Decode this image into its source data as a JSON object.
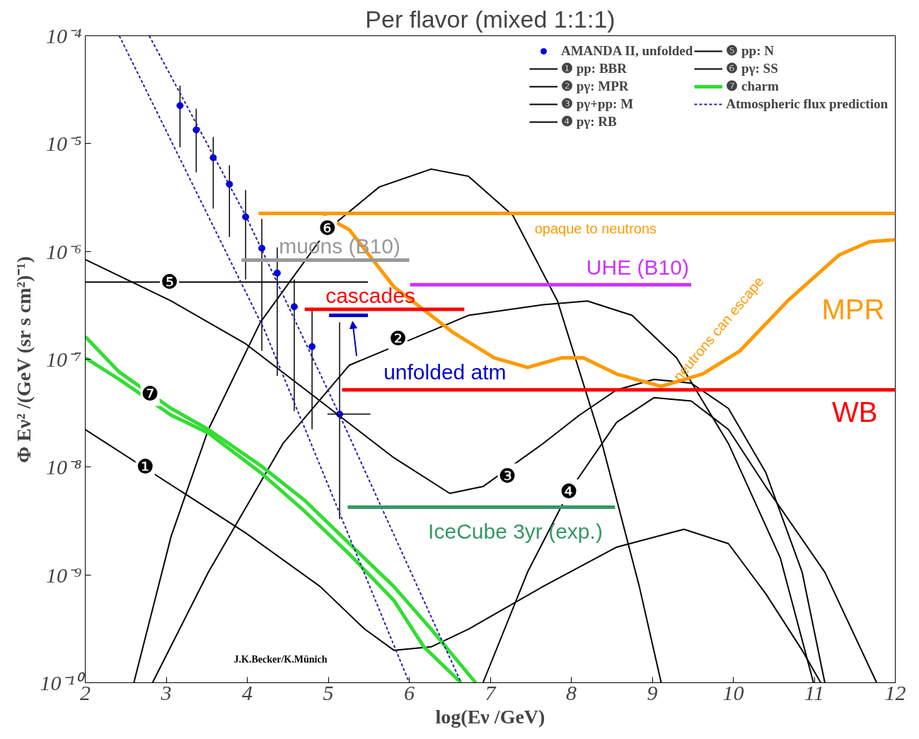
{
  "chart_data": {
    "type": "line",
    "title": "Per flavor (mixed 1:1:1)",
    "xlabel": "log(Eν /GeV)",
    "ylabel": "Φ Eν² /(GeV (sr s cm²)⁻¹)",
    "log": "y",
    "grid": false,
    "legend": "top right",
    "xlim": [
      2,
      12
    ],
    "ylim": [
      1e-10,
      0.0001
    ],
    "xticks": [
      2,
      3,
      4,
      5,
      6,
      7,
      8,
      9,
      10,
      11,
      12
    ],
    "yticks": [
      {
        "value": 1e-10,
        "label": "10⁻¹⁰"
      },
      {
        "value": 1e-09,
        "label": "10⁻⁹"
      },
      {
        "value": 1e-08,
        "label": "10⁻⁸"
      },
      {
        "value": 1e-07,
        "label": "10⁻⁷"
      },
      {
        "value": 1e-06,
        "label": "10⁻⁶"
      },
      {
        "value": 1e-05,
        "label": "10⁻⁵"
      },
      {
        "value": 0.0001,
        "label": "10⁻⁴"
      }
    ],
    "series": [
      {
        "name": "AMANDA II, unfolded",
        "type": "scatter",
        "marker": "circle",
        "color": "#0000dd",
        "x": [
          3.17,
          3.37,
          3.58,
          3.78,
          3.98,
          4.18,
          4.37,
          4.58,
          4.8,
          5.14
        ],
        "values": [
          2.25e-05,
          1.34e-05,
          7.4e-06,
          4.2e-06,
          2.09e-06,
          1.07e-06,
          6.3e-07,
          3.07e-07,
          1.31e-07,
          3.1e-08
        ],
        "errors": [
          [
            9.2e-06,
            3.44e-05
          ],
          [
            5.4e-06,
            2.1e-05
          ],
          [
            2.5e-06,
            1.15e-05
          ],
          [
            1.36e-06,
            6.3e-06
          ],
          [
            5.5e-07,
            3.7e-06
          ],
          [
            1.2e-07,
            2e-06
          ],
          [
            7e-08,
            1.09e-06
          ],
          [
            3.3e-08,
            5.5e-07
          ],
          [
            2.24e-08,
            3e-07
          ],
          [
            3.3e-09,
            2.2e-07
          ]
        ],
        "xerrors": [
          null,
          null,
          null,
          null,
          null,
          null,
          null,
          null,
          null,
          [
            4.99,
            5.52
          ]
        ]
      },
      {
        "name": "❶ pp: BBR",
        "color": "#000000",
        "x": [
          2.0,
          3.98,
          4.9,
          5.45,
          5.81,
          6.27,
          6.73,
          7.65,
          8.56,
          9.39,
          9.94,
          10.4,
          10.85,
          11.08
        ],
        "values": [
          2.23e-08,
          2.45e-09,
          7.8e-10,
          3.14e-10,
          2e-10,
          2.15e-10,
          3.14e-10,
          7.8e-10,
          1.81e-09,
          2.65e-09,
          1.95e-09,
          6.7e-10,
          2e-10,
          1e-10
        ]
      },
      {
        "name": "❷ pγ: MPR",
        "color": "#000000",
        "x": [
          2.83,
          3.52,
          4.44,
          5.26,
          6.73,
          7.65,
          8.2,
          8.75,
          9.3,
          9.94,
          10.58,
          10.99
        ],
        "values": [
          1e-10,
          1.06e-09,
          1.65e-08,
          8.8e-08,
          2.55e-07,
          3.2e-07,
          3.47e-07,
          2.55e-07,
          1.03e-07,
          1.65e-08,
          1.44e-09,
          1e-10
        ]
      },
      {
        "name": "❸ pγ+pp: M",
        "color": "#000000",
        "x": [
          2.0,
          3.06,
          3.98,
          4.9,
          5.81,
          6.5,
          6.91,
          7.65,
          8.1,
          8.56,
          9.02,
          9.48,
          9.94,
          10.4,
          10.85,
          11.13
        ],
        "values": [
          8.4e-07,
          3.47e-07,
          1.39e-07,
          4.1e-08,
          1.22e-08,
          5.7e-09,
          6.6e-09,
          1.65e-08,
          3.03e-08,
          5.2e-08,
          6.5e-08,
          6e-08,
          3.5e-08,
          8.95e-09,
          1.06e-09,
          1e-10
        ]
      },
      {
        "name": "❹ pγ: RB",
        "color": "#000000",
        "x": [
          6.91,
          7.46,
          7.97,
          8.56,
          9.02,
          9.48,
          9.94,
          10.4,
          11.13,
          11.77
        ],
        "values": [
          1e-10,
          1.06e-09,
          5.9e-09,
          2.6e-08,
          4.4e-08,
          4.1e-08,
          2.23e-08,
          6.6e-09,
          1.06e-09,
          1e-10
        ]
      },
      {
        "name": "❺ pp: N",
        "color": "#000000",
        "x": [
          2.0,
          5.49
        ],
        "values": [
          5.2e-07,
          5.2e-07
        ]
      },
      {
        "name": "❻ pγ: SS",
        "color": "#000000",
        "x": [
          2.6,
          3.06,
          3.52,
          4.16,
          4.99,
          5.63,
          6.27,
          6.73,
          7.28,
          7.83,
          8.38,
          8.84,
          9.11
        ],
        "values": [
          1e-10,
          2.28e-09,
          2.23e-08,
          2.19e-07,
          1.59e-06,
          3.96e-06,
          5.8e-06,
          4.98e-06,
          2.15e-06,
          3.47e-07,
          1.65e-08,
          7.8e-10,
          1e-10
        ]
      },
      {
        "name": "❼ charm",
        "color": "#33dd33",
        "x": [
          2.0,
          2.42,
          3.06,
          3.52,
          4.16,
          4.71,
          5.26,
          5.81,
          6.27,
          6.82
        ],
        "values": [
          1.62e-07,
          7.6e-08,
          3.5e-08,
          2.23e-08,
          1.04e-08,
          4.9e-09,
          1.95e-09,
          7.8e-10,
          3.14e-10,
          1e-10
        ]
      },
      {
        "color": "#33dd33",
        "x": [
          2.0,
          2.42,
          3.06,
          3.52,
          4.16,
          4.71,
          5.26,
          5.81,
          6.18,
          6.64
        ],
        "values": [
          1.03e-07,
          6.5e-08,
          3.03e-08,
          2.07e-08,
          8.95e-09,
          3.88e-09,
          1.56e-09,
          5.8e-10,
          2.15e-10,
          1e-10
        ]
      },
      {
        "name": "Atmospheric flux prediction",
        "color": "#2222aa",
        "line_style": "dashed",
        "x": [
          2.42,
          4.21,
          6.0
        ],
        "values": [
          0.0001,
          1.88e-07,
          1e-10
        ]
      },
      {
        "color": "#2222aa",
        "line_style": "dashed",
        "x": [
          2.79,
          3.98,
          5.14,
          6.64
        ],
        "values": [
          0.0001,
          2.15e-06,
          3.03e-08,
          1e-10
        ]
      },
      {
        "name": "opaque to neutrons",
        "color": "#ff9900",
        "x": [
          4.14,
          12.0
        ],
        "values": [
          2.25e-06,
          2.25e-06
        ]
      },
      {
        "name": "MPR",
        "color": "#ff9900",
        "x": [
          4.94,
          5.26,
          5.81,
          6.55,
          7.05,
          7.46,
          7.88,
          8.15,
          8.56,
          9.11,
          9.62,
          10.08,
          10.67,
          11.31,
          11.68,
          12.0
        ],
        "values": [
          2.15e-06,
          1.59e-06,
          4.7e-07,
          1.75e-07,
          1.03e-07,
          8.4e-08,
          1.03e-07,
          1.03e-07,
          7.3e-08,
          5.6e-08,
          7.3e-08,
          1.19e-07,
          3.47e-07,
          9.3e-07,
          1.23e-06,
          1.28e-06
        ]
      },
      {
        "name": "WB",
        "color": "#ff0000",
        "x": [
          5.17,
          12.0
        ],
        "values": [
          5.2e-08,
          5.2e-08
        ]
      },
      {
        "name": "UHE (B10)",
        "color": "#cc33ff",
        "x": [
          6.01,
          9.48
        ],
        "values": [
          4.9e-07,
          4.9e-07
        ]
      },
      {
        "name": "cascades",
        "color": "#ff0000",
        "x": [
          4.71,
          6.68
        ],
        "values": [
          2.9e-07,
          2.9e-07
        ]
      },
      {
        "name": "muons (B10)",
        "color": "#999999",
        "x": [
          3.93,
          6.0
        ],
        "values": [
          8.3e-07,
          8.3e-07
        ]
      },
      {
        "name": "unfolded atm",
        "color": "#0000cc",
        "x": [
          5.01,
          5.49
        ],
        "values": [
          2.55e-07,
          2.55e-07
        ]
      },
      {
        "name": "IceCube 3yr (exp.)",
        "color": "#339966",
        "x": [
          5.24,
          8.54
        ],
        "values": [
          4.25e-09,
          4.25e-09
        ]
      }
    ],
    "annotations": [
      {
        "text": "❶",
        "x": 2.74,
        "y": 1e-08
      },
      {
        "text": "❷",
        "x": 5.86,
        "y": 1.55e-07
      },
      {
        "text": "❸",
        "x": 7.21,
        "y": 8.3e-09
      },
      {
        "text": "❹",
        "x": 7.97,
        "y": 5.9e-09
      },
      {
        "text": "❺",
        "x": 3.04,
        "y": 5.2e-07
      },
      {
        "text": "❻",
        "x": 4.99,
        "y": 1.64e-06
      },
      {
        "text": "❼",
        "x": 2.8,
        "y": 4.8e-08
      },
      "neutrons can escape",
      "J.K.Becker/K.Münich"
    ]
  }
}
